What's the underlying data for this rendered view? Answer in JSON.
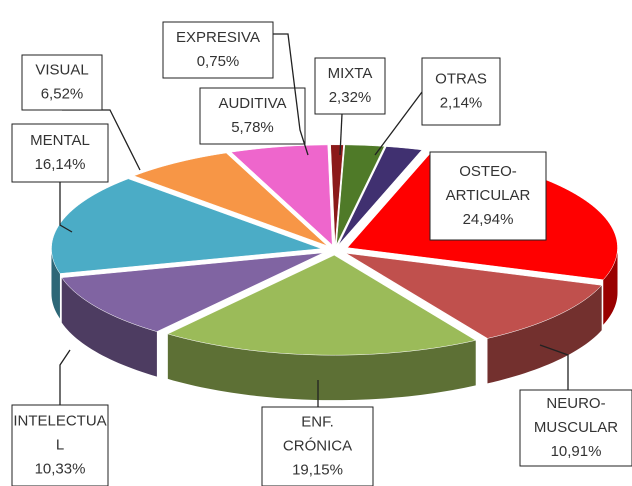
{
  "chart_data": {
    "type": "pie3d",
    "categories": [
      [
        "OSTEO-",
        "ARTICULAR"
      ],
      [
        "NEURO-",
        "MUSCULAR"
      ],
      [
        "ENF.",
        "CRÓNICA"
      ],
      [
        "INTELECTUA",
        "L"
      ],
      [
        "MENTAL"
      ],
      [
        "VISUAL"
      ],
      [
        "AUDITIVA"
      ],
      [
        "EXPRESIVA"
      ],
      [
        "MIXTA"
      ],
      [
        "OTRAS"
      ]
    ],
    "values": [
      24.94,
      10.91,
      19.15,
      10.33,
      16.14,
      6.52,
      5.78,
      0.75,
      2.32,
      2.14
    ],
    "value_labels": [
      "24,94%",
      "10,91%",
      "19,15%",
      "10,33%",
      "16,14%",
      "6,52%",
      "5,78%",
      "0,75%",
      "2,32%",
      "2,14%"
    ],
    "colors": [
      "#ff0000",
      "#c0504d",
      "#9bbb59",
      "#8064a2",
      "#4bacc6",
      "#f79646",
      "#ee66cc",
      "#8b1a1a",
      "#4f7a28",
      "#403070"
    ]
  }
}
